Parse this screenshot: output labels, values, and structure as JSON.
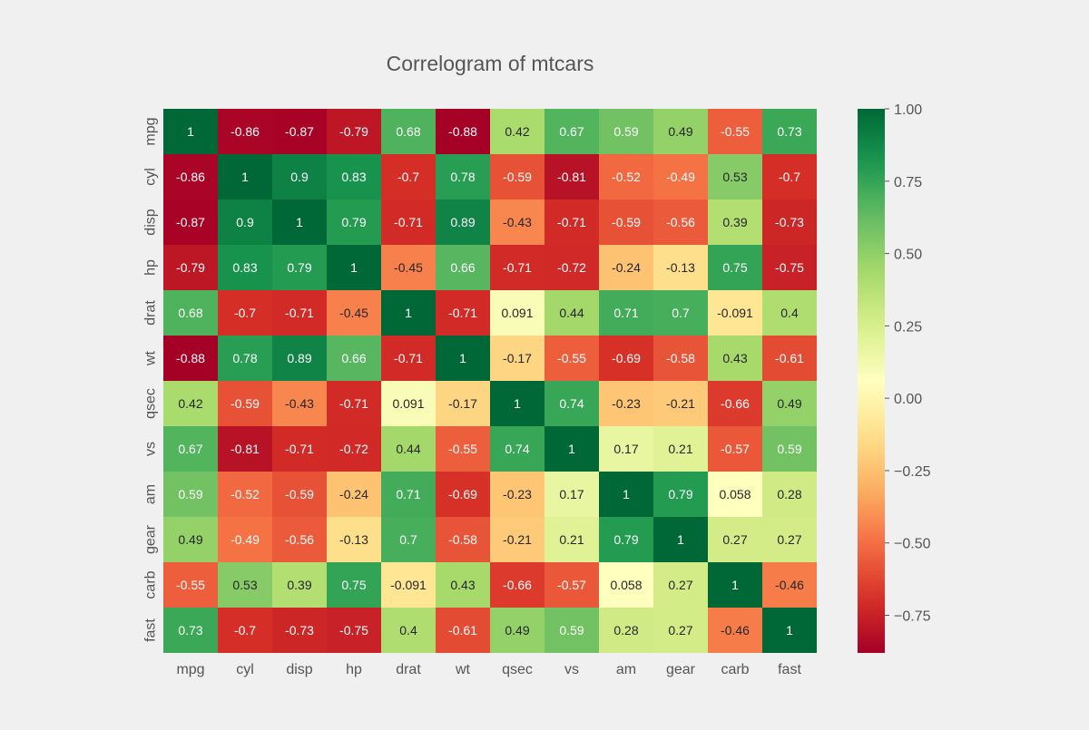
{
  "chart_data": {
    "type": "heatmap",
    "title": "Correlogram of mtcars",
    "xlabel": "",
    "ylabel": "",
    "rows": [
      "mpg",
      "cyl",
      "disp",
      "hp",
      "drat",
      "wt",
      "qsec",
      "vs",
      "am",
      "gear",
      "carb",
      "fast"
    ],
    "columns": [
      "mpg",
      "cyl",
      "disp",
      "hp",
      "drat",
      "wt",
      "qsec",
      "vs",
      "am",
      "gear",
      "carb",
      "fast"
    ],
    "values": [
      [
        1,
        -0.86,
        -0.87,
        -0.79,
        0.68,
        -0.88,
        0.42,
        0.67,
        0.59,
        0.49,
        -0.55,
        0.73
      ],
      [
        -0.86,
        1,
        0.9,
        0.83,
        -0.7,
        0.78,
        -0.59,
        -0.81,
        -0.52,
        -0.49,
        0.53,
        -0.7
      ],
      [
        -0.87,
        0.9,
        1,
        0.79,
        -0.71,
        0.89,
        -0.43,
        -0.71,
        -0.59,
        -0.56,
        0.39,
        -0.73
      ],
      [
        -0.79,
        0.83,
        0.79,
        1,
        -0.45,
        0.66,
        -0.71,
        -0.72,
        -0.24,
        -0.13,
        0.75,
        -0.75
      ],
      [
        0.68,
        -0.7,
        -0.71,
        -0.45,
        1,
        -0.71,
        0.091,
        0.44,
        0.71,
        0.7,
        -0.091,
        0.4
      ],
      [
        -0.88,
        0.78,
        0.89,
        0.66,
        -0.71,
        1,
        -0.17,
        -0.55,
        -0.69,
        -0.58,
        0.43,
        -0.61
      ],
      [
        0.42,
        -0.59,
        -0.43,
        -0.71,
        0.091,
        -0.17,
        1,
        0.74,
        -0.23,
        -0.21,
        -0.66,
        0.49
      ],
      [
        0.67,
        -0.81,
        -0.71,
        -0.72,
        0.44,
        -0.55,
        0.74,
        1,
        0.17,
        0.21,
        -0.57,
        0.59
      ],
      [
        0.59,
        -0.52,
        -0.59,
        -0.24,
        0.71,
        -0.69,
        -0.23,
        0.17,
        1,
        0.79,
        0.058,
        0.28
      ],
      [
        0.49,
        -0.49,
        -0.56,
        -0.13,
        0.7,
        -0.58,
        -0.21,
        0.21,
        0.79,
        1,
        0.27,
        0.27
      ],
      [
        -0.55,
        0.53,
        0.39,
        0.75,
        -0.091,
        0.43,
        -0.66,
        -0.57,
        0.058,
        0.27,
        1,
        -0.46
      ],
      [
        0.73,
        -0.7,
        -0.73,
        -0.75,
        0.4,
        -0.61,
        0.49,
        0.59,
        0.28,
        0.27,
        -0.46,
        1
      ]
    ],
    "colormap": "RdYlGn",
    "colormap_stops": [
      "#a50026",
      "#d73027",
      "#f46d43",
      "#fdae61",
      "#fee08b",
      "#ffffbf",
      "#d9ef8b",
      "#a6d96a",
      "#66bd63",
      "#1a9850",
      "#006837"
    ],
    "vmin": -0.88,
    "vmax": 1.0,
    "colorbar_ticks": [
      {
        "value": 1.0,
        "label": "1.00"
      },
      {
        "value": 0.75,
        "label": "0.75"
      },
      {
        "value": 0.5,
        "label": "0.50"
      },
      {
        "value": 0.25,
        "label": "0.25"
      },
      {
        "value": 0.0,
        "label": "0.00"
      },
      {
        "value": -0.25,
        "label": "−0.25"
      },
      {
        "value": -0.5,
        "label": "−0.50"
      },
      {
        "value": -0.75,
        "label": "−0.75"
      }
    ],
    "annotations": true,
    "grid": false,
    "background_color": "#f0f0f0",
    "text_color": "#555555"
  }
}
